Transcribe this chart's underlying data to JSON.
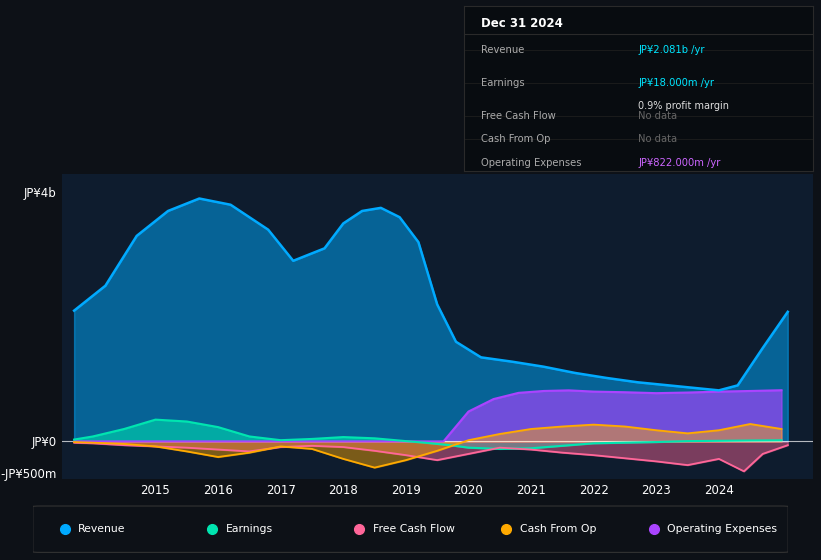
{
  "bg_color": "#0d1117",
  "chart_bg": "#0e1c2e",
  "title_date": "Dec 31 2024",
  "info_box": {
    "Revenue": {
      "value": "JP¥2.081b /yr",
      "color": "#00e5ff"
    },
    "Earnings": {
      "value": "JP¥18.000m /yr",
      "color": "#00e5ff"
    },
    "profit_margin": "0.9% profit margin",
    "Free Cash Flow": {
      "value": "No data",
      "color": "#666666"
    },
    "Cash From Op": {
      "value": "No data",
      "color": "#666666"
    },
    "Operating Expenses": {
      "value": "JP¥822.000m /yr",
      "color": "#cc66ff"
    }
  },
  "ylim": [
    -600,
    4300
  ],
  "xlim": [
    2013.5,
    2025.5
  ],
  "yticks": [
    -500,
    0,
    4000
  ],
  "ytick_labels": [
    "-JP¥500m",
    "JP¥0",
    "JP¥4b"
  ],
  "xticks": [
    2015,
    2016,
    2017,
    2018,
    2019,
    2020,
    2021,
    2022,
    2023,
    2024
  ],
  "legend": [
    {
      "label": "Revenue",
      "color": "#00aaff"
    },
    {
      "label": "Earnings",
      "color": "#00e5b0"
    },
    {
      "label": "Free Cash Flow",
      "color": "#ff6699"
    },
    {
      "label": "Cash From Op",
      "color": "#ffaa00"
    },
    {
      "label": "Operating Expenses",
      "color": "#aa44ff"
    }
  ],
  "revenue_x": [
    2013.7,
    2014.2,
    2014.7,
    2015.2,
    2015.7,
    2016.2,
    2016.5,
    2016.8,
    2017.2,
    2017.7,
    2018.0,
    2018.3,
    2018.6,
    2018.9,
    2019.2,
    2019.5,
    2019.8,
    2020.2,
    2020.7,
    2021.2,
    2021.7,
    2022.2,
    2022.7,
    2023.2,
    2023.7,
    2024.0,
    2024.3,
    2024.7,
    2025.1
  ],
  "revenue_y": [
    2100,
    2500,
    3300,
    3700,
    3900,
    3800,
    3600,
    3400,
    2900,
    3100,
    3500,
    3700,
    3750,
    3600,
    3200,
    2200,
    1600,
    1350,
    1280,
    1200,
    1100,
    1020,
    950,
    900,
    850,
    820,
    900,
    1500,
    2081
  ],
  "earnings_x": [
    2013.7,
    2014.0,
    2014.5,
    2015.0,
    2015.5,
    2016.0,
    2016.5,
    2017.0,
    2017.5,
    2018.0,
    2018.5,
    2019.0,
    2019.3,
    2019.7,
    2020.0,
    2020.5,
    2021.0,
    2021.5,
    2022.0,
    2022.5,
    2023.0,
    2023.5,
    2024.0,
    2024.5,
    2025.0
  ],
  "earnings_y": [
    30,
    80,
    200,
    350,
    320,
    230,
    80,
    20,
    40,
    70,
    50,
    5,
    -20,
    -60,
    -100,
    -120,
    -110,
    -70,
    -30,
    -20,
    -10,
    5,
    10,
    15,
    18
  ],
  "fcf_x": [
    2013.7,
    2014.0,
    2014.5,
    2015.0,
    2015.5,
    2016.0,
    2016.5,
    2017.0,
    2017.5,
    2018.0,
    2018.5,
    2019.0,
    2019.5,
    2020.0,
    2020.5,
    2021.0,
    2021.5,
    2022.0,
    2022.5,
    2023.0,
    2023.5,
    2024.0,
    2024.4,
    2024.7,
    2025.1
  ],
  "fcf_y": [
    -20,
    -30,
    -60,
    -80,
    -100,
    -130,
    -160,
    -90,
    -70,
    -90,
    -150,
    -220,
    -300,
    -200,
    -100,
    -130,
    -180,
    -220,
    -270,
    -320,
    -380,
    -280,
    -480,
    -200,
    -60
  ],
  "cfo_x": [
    2013.7,
    2014.0,
    2014.5,
    2015.0,
    2015.5,
    2016.0,
    2016.5,
    2017.0,
    2017.5,
    2018.0,
    2018.5,
    2019.0,
    2019.5,
    2020.0,
    2020.5,
    2021.0,
    2021.5,
    2022.0,
    2022.5,
    2023.0,
    2023.5,
    2024.0,
    2024.5,
    2025.0
  ],
  "cfo_y": [
    -10,
    -20,
    -40,
    -80,
    -160,
    -250,
    -180,
    -80,
    -120,
    -280,
    -420,
    -300,
    -150,
    20,
    120,
    200,
    240,
    270,
    240,
    180,
    130,
    180,
    280,
    200
  ],
  "opex_x": [
    2013.7,
    2014.0,
    2014.5,
    2015.0,
    2015.5,
    2016.0,
    2016.5,
    2017.0,
    2017.5,
    2018.0,
    2018.5,
    2019.0,
    2019.3,
    2019.6,
    2020.0,
    2020.4,
    2020.8,
    2021.2,
    2021.6,
    2022.0,
    2022.5,
    2023.0,
    2023.5,
    2024.0,
    2024.5,
    2025.0
  ],
  "opex_y": [
    0,
    0,
    0,
    0,
    0,
    0,
    0,
    0,
    0,
    0,
    0,
    0,
    0,
    0,
    480,
    680,
    780,
    810,
    820,
    800,
    790,
    775,
    785,
    800,
    810,
    822
  ]
}
